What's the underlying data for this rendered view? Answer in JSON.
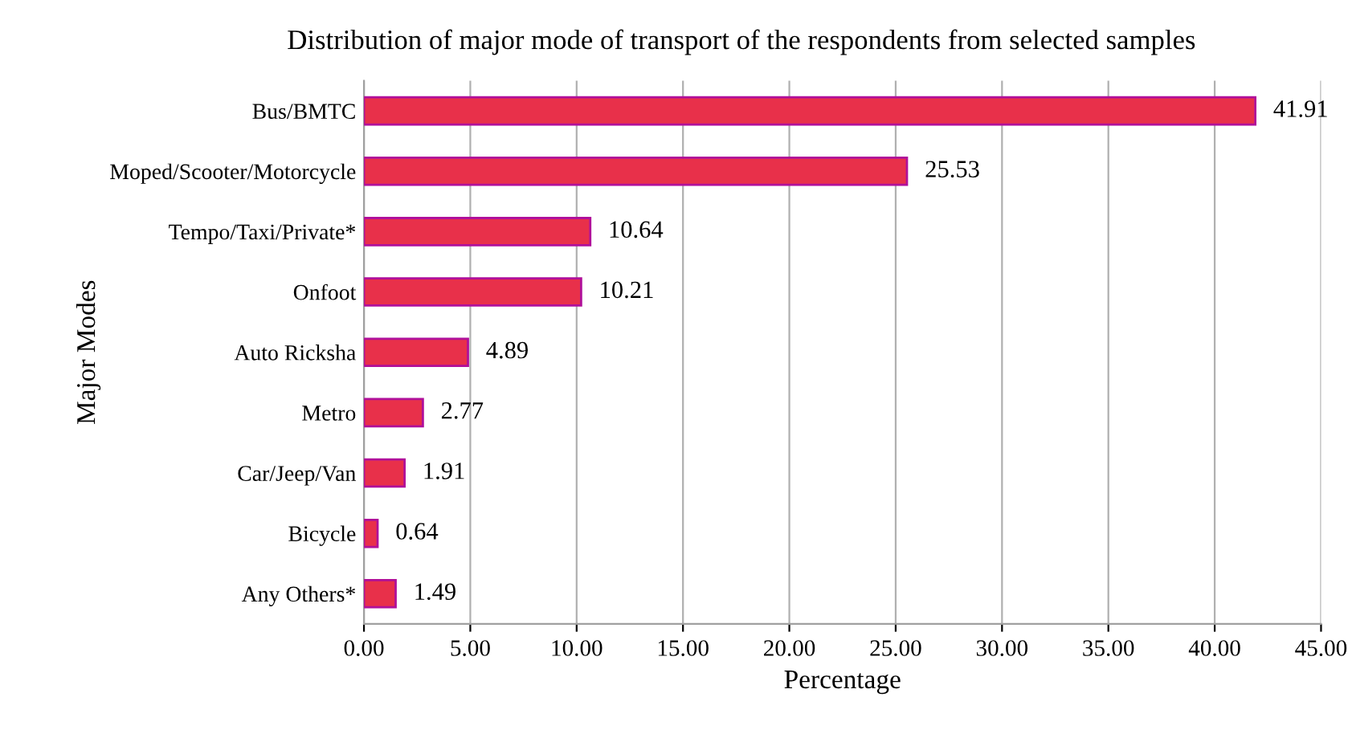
{
  "chart_data": {
    "type": "bar",
    "orientation": "horizontal",
    "title": "Distribution of major mode of transport of the respondents from selected samples",
    "xlabel": "Percentage",
    "ylabel": "Major Modes",
    "categories": [
      "Bus/BMTC",
      "Moped/Scooter/Motorcycle",
      "Tempo/Taxi/Private*",
      "Onfoot",
      "Auto Ricksha",
      "Metro",
      "Car/Jeep/Van",
      "Bicycle",
      "Any Others*"
    ],
    "values": [
      41.91,
      25.53,
      10.64,
      10.21,
      4.89,
      2.77,
      1.91,
      0.64,
      1.49
    ],
    "color": "#e8304a",
    "data_labels": true,
    "grid": "x",
    "legend": false,
    "xlim": [
      0,
      45
    ],
    "xticks": [
      {
        "value": 0,
        "label": "0.00"
      },
      {
        "value": 5,
        "label": "5.00"
      },
      {
        "value": 10,
        "label": "10.00"
      },
      {
        "value": 15,
        "label": "15.00"
      },
      {
        "value": 20,
        "label": "20.00"
      },
      {
        "value": 25,
        "label": "25.00"
      },
      {
        "value": 30,
        "label": "30.00"
      },
      {
        "value": 35,
        "label": "35.00"
      },
      {
        "value": 40,
        "label": "40.00"
      },
      {
        "value": 45,
        "label": "45.00"
      }
    ]
  }
}
